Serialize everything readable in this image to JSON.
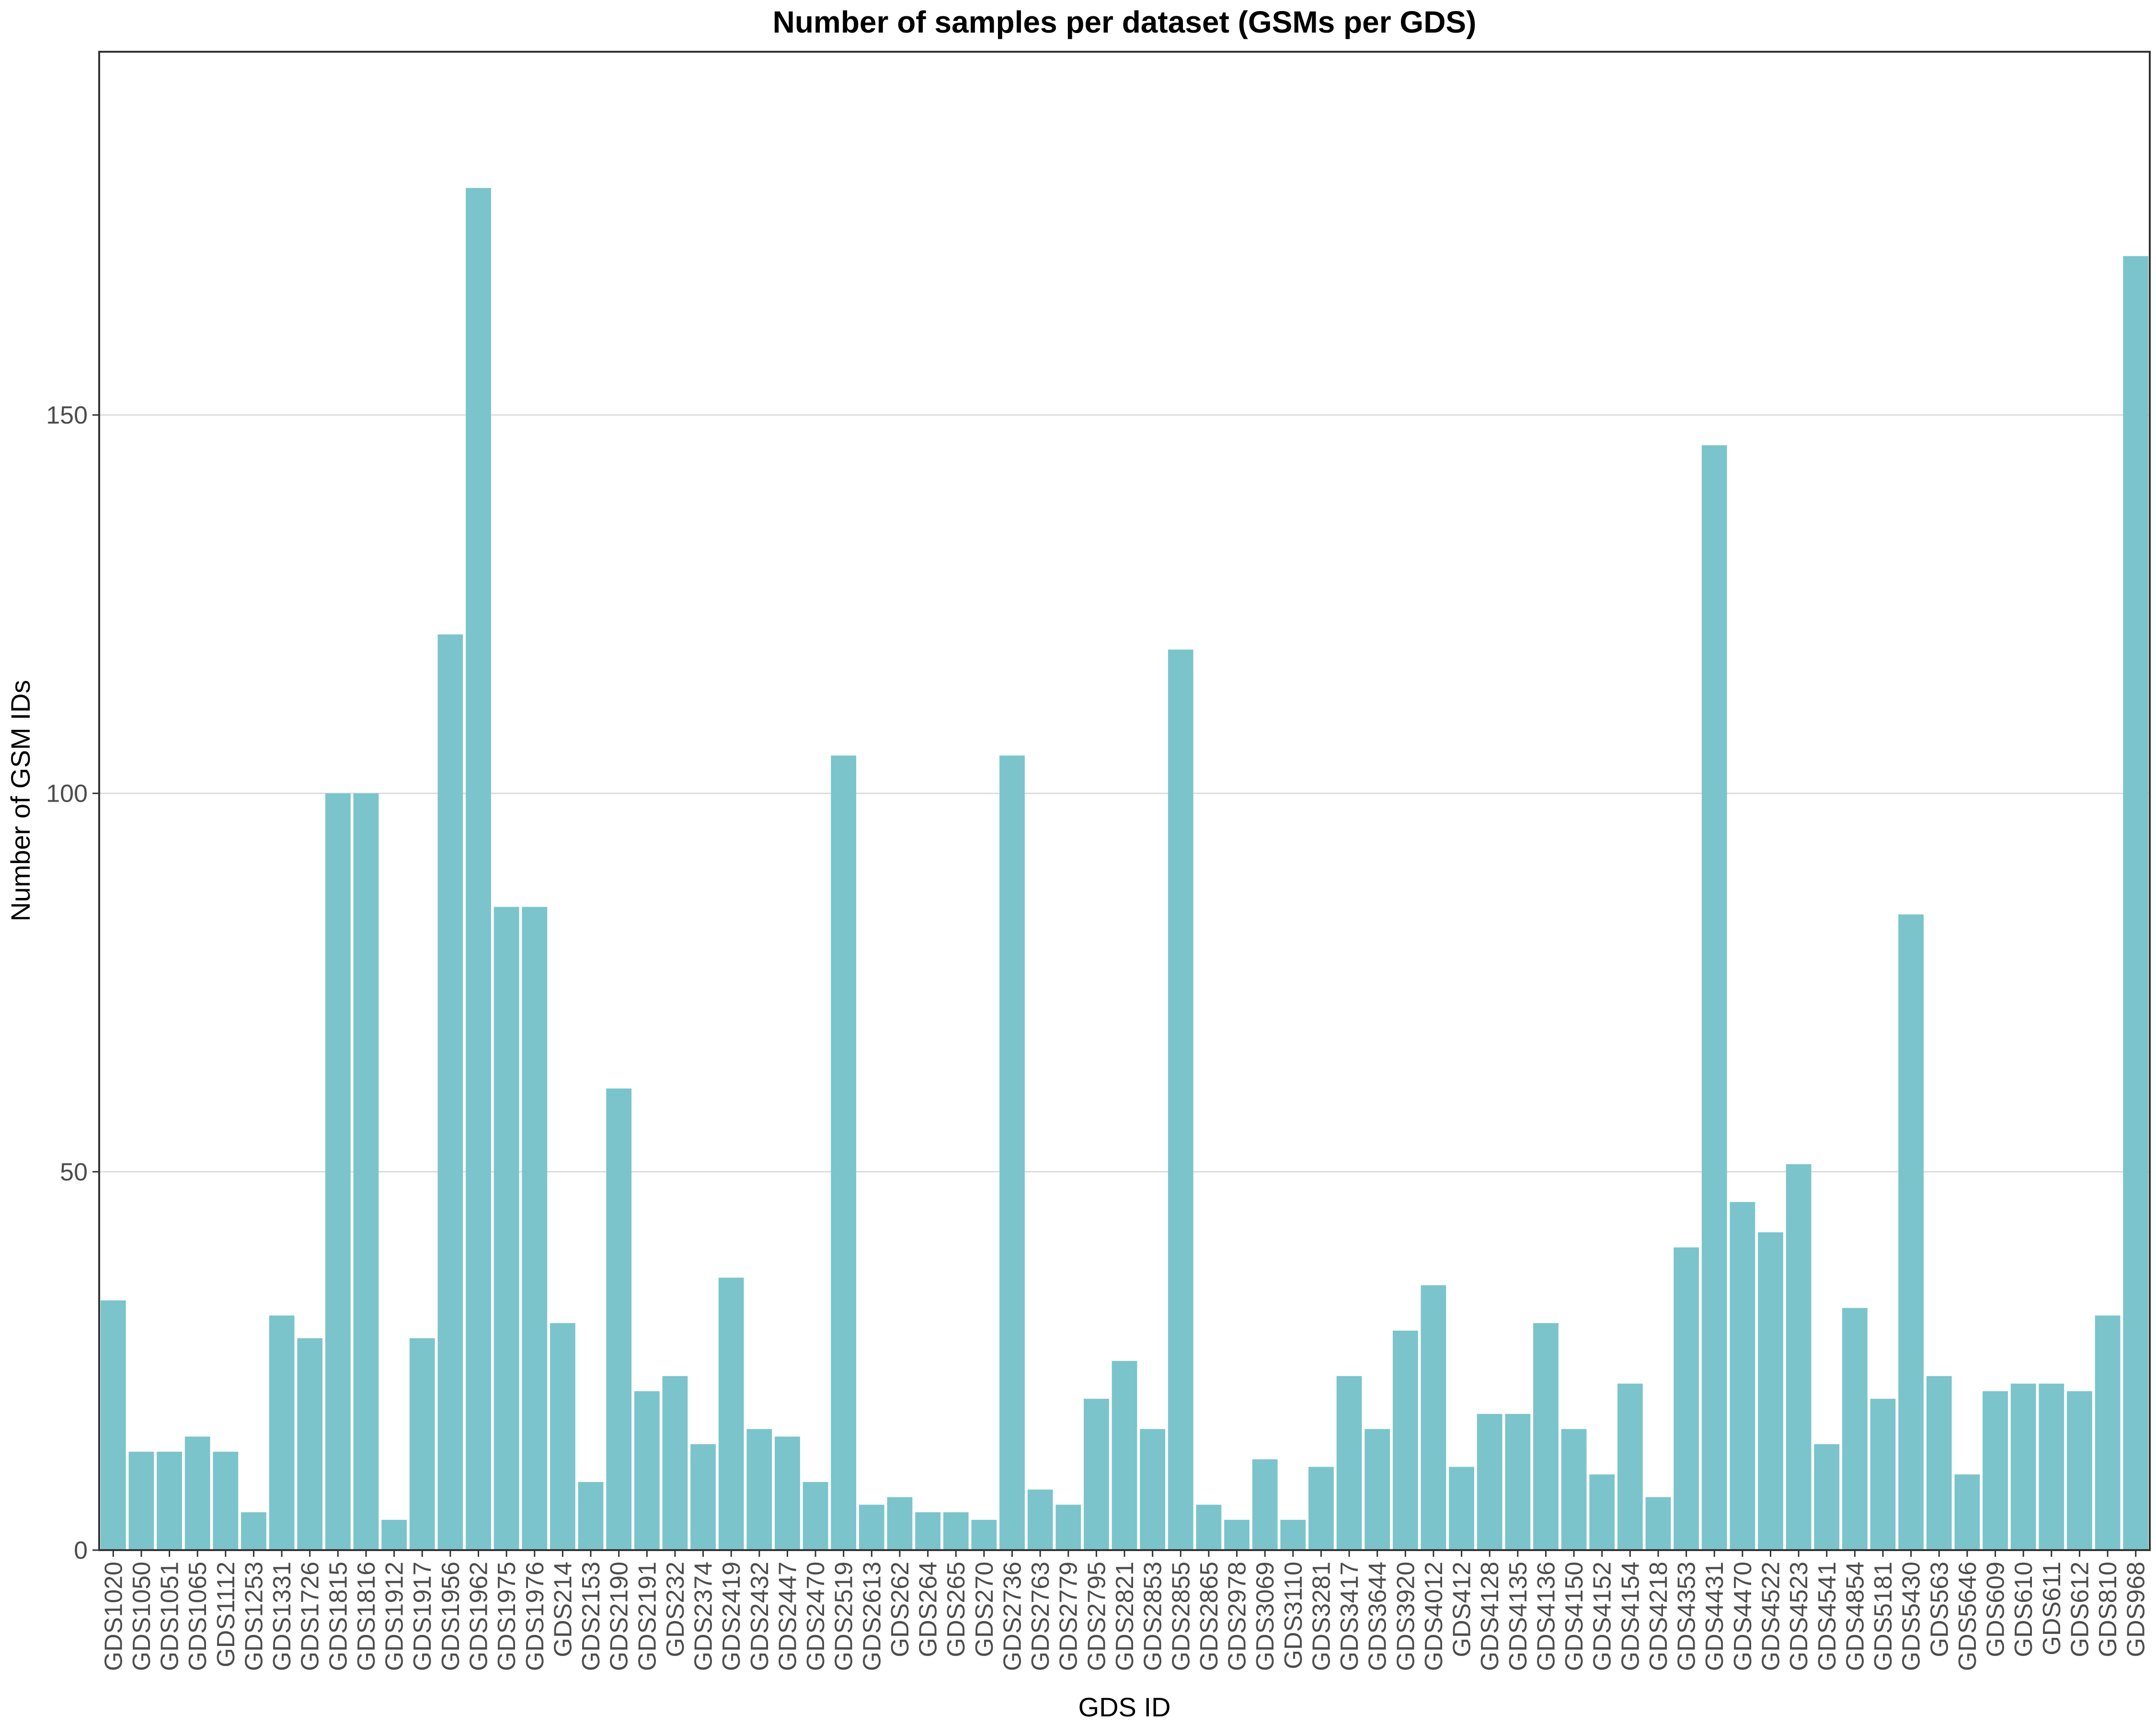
{
  "chart_data": {
    "type": "bar",
    "title": "Number of samples per dataset (GSMs per GDS)",
    "xlabel": "GDS ID",
    "ylabel": "Number of GSM IDs",
    "ylim": [
      0,
      198
    ],
    "yticks": [
      0,
      50,
      100,
      150
    ],
    "grid": "horizontal",
    "bar_color": "#7bc4cb",
    "categories": [
      "GDS1020",
      "GDS1050",
      "GDS1051",
      "GDS1065",
      "GDS1112",
      "GDS1253",
      "GDS1331",
      "GDS1726",
      "GDS1815",
      "GDS1816",
      "GDS1912",
      "GDS1917",
      "GDS1956",
      "GDS1962",
      "GDS1975",
      "GDS1976",
      "GDS214",
      "GDS2153",
      "GDS2190",
      "GDS2191",
      "GDS232",
      "GDS2374",
      "GDS2419",
      "GDS2432",
      "GDS2447",
      "GDS2470",
      "GDS2519",
      "GDS2613",
      "GDS262",
      "GDS264",
      "GDS265",
      "GDS270",
      "GDS2736",
      "GDS2763",
      "GDS2779",
      "GDS2795",
      "GDS2821",
      "GDS2853",
      "GDS2855",
      "GDS2865",
      "GDS2978",
      "GDS3069",
      "GDS3110",
      "GDS3281",
      "GDS3417",
      "GDS3644",
      "GDS3920",
      "GDS4012",
      "GDS412",
      "GDS4128",
      "GDS4135",
      "GDS4136",
      "GDS4150",
      "GDS4152",
      "GDS4154",
      "GDS4218",
      "GDS4353",
      "GDS4431",
      "GDS4470",
      "GDS4522",
      "GDS4523",
      "GDS4541",
      "GDS4854",
      "GDS5181",
      "GDS5430",
      "GDS563",
      "GDS5646",
      "GDS609",
      "GDS610",
      "GDS611",
      "GDS612",
      "GDS810",
      "GDS968"
    ],
    "values": [
      33,
      13,
      13,
      15,
      13,
      5,
      31,
      28,
      100,
      100,
      4,
      28,
      121,
      180,
      85,
      85,
      30,
      9,
      61,
      21,
      23,
      14,
      36,
      16,
      15,
      9,
      105,
      6,
      7,
      5,
      5,
      4,
      105,
      8,
      6,
      20,
      25,
      16,
      119,
      6,
      4,
      12,
      4,
      11,
      23,
      16,
      29,
      35,
      11,
      18,
      18,
      30,
      16,
      10,
      22,
      7,
      40,
      146,
      46,
      42,
      51,
      14,
      32,
      20,
      84,
      23,
      10,
      21,
      22,
      22,
      21,
      31,
      171
    ]
  }
}
